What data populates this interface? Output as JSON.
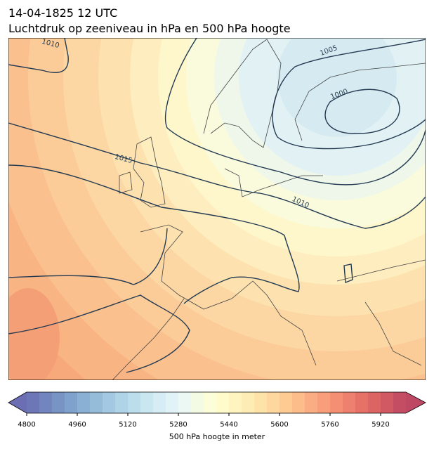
{
  "header": {
    "date": "14-04-1825 12 UTC",
    "subtitle": "Luchtdruk op zeeniveau in hPa en 500 hPa hoogte"
  },
  "map": {
    "contour_labels": [
      "1010",
      "1005",
      "1000",
      "1015",
      "1010"
    ]
  },
  "colorbar": {
    "label": "500 hPa hoogte in meter",
    "vlim": [
      4800,
      6000
    ],
    "step": 40,
    "ticks": [
      4800,
      4960,
      5120,
      5280,
      5440,
      5600,
      5760,
      5920
    ],
    "colormap": [
      "#313695",
      "#4575b4",
      "#74add1",
      "#abd9e9",
      "#e0f3f8",
      "#ffffbf",
      "#fee090",
      "#fdae61",
      "#f46d43",
      "#d73027",
      "#a50026"
    ]
  }
}
